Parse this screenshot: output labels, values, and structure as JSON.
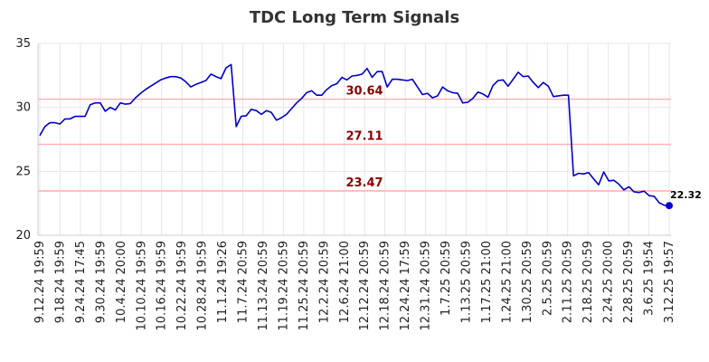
{
  "chart_data": {
    "type": "line",
    "title": "TDC Long Term Signals",
    "xlabel": "",
    "ylabel": "",
    "ylim": [
      20,
      35
    ],
    "yticks": [
      20,
      25,
      30,
      35
    ],
    "grid": true,
    "x_tick_labels": [
      "9.12.24 19:59",
      "9.18.24 19:59",
      "9.24.24 17:45",
      "9.30.24 19:59",
      "10.4.24 20:00",
      "10.10.24 19:59",
      "10.16.24 19:59",
      "10.22.24 19:59",
      "10.28.24 19:59",
      "11.1.24 19:26",
      "11.7.24 20:59",
      "11.13.24 20:59",
      "11.19.24 20:59",
      "11.25.24 20:59",
      "12.2.24 20:59",
      "12.6.24 21:00",
      "12.12.24 20:59",
      "12.18.24 20:59",
      "12.24.24 17:59",
      "12.31.24 20:59",
      "1.7.25 20:59",
      "1.13.25 20:59",
      "1.17.25 21:00",
      "1.24.25 21:00",
      "1.30.25 20:59",
      "2.5.25 20:59",
      "2.11.25 20:59",
      "2.18.25 20:59",
      "2.24.25 20:00",
      "2.28.25 20:59",
      "3.6.25 19:54",
      "3.12.25 19:57"
    ],
    "horizontal_levels": [
      {
        "value": 30.64,
        "label": "30.64"
      },
      {
        "value": 27.11,
        "label": "27.11"
      },
      {
        "value": 23.47,
        "label": "23.47"
      }
    ],
    "last_value_label": "22.32",
    "colors": {
      "series": "#0000cc",
      "levels": "#ffb3b3",
      "level_text": "#8b0000"
    },
    "series": [
      {
        "values": [
          27.8,
          28.5,
          28.8,
          28.8,
          28.7,
          29.1,
          29.1,
          29.3,
          29.3,
          29.3,
          30.2,
          30.35,
          30.35,
          29.7,
          30.0,
          29.8,
          30.35,
          30.25,
          30.3,
          30.75,
          31.1,
          31.4,
          31.65,
          31.9,
          32.15,
          32.3,
          32.4,
          32.4,
          32.3,
          32.0,
          31.6,
          31.8,
          31.95,
          32.1,
          32.6,
          32.4,
          32.25,
          33.1,
          33.35,
          28.5,
          29.3,
          29.35,
          29.85,
          29.75,
          29.45,
          29.75,
          29.6,
          29.0,
          29.2,
          29.45,
          29.9,
          30.35,
          30.7,
          31.15,
          31.3,
          30.95,
          30.95,
          31.4,
          31.7,
          31.85,
          32.35,
          32.15,
          32.45,
          32.5,
          32.6,
          33.05,
          32.35,
          32.8,
          32.8,
          31.6,
          32.2,
          32.2,
          32.15,
          32.1,
          32.2,
          31.6,
          31.0,
          31.1,
          30.75,
          30.9,
          31.6,
          31.3,
          31.15,
          31.1,
          30.35,
          30.4,
          30.7,
          31.2,
          31.05,
          30.8,
          31.7,
          32.1,
          32.15,
          31.65,
          32.2,
          32.75,
          32.4,
          32.45,
          31.95,
          31.55,
          31.95,
          31.65,
          30.85,
          30.9,
          30.95,
          30.95,
          24.65,
          24.85,
          24.8,
          24.9,
          24.4,
          23.95,
          24.95,
          24.25,
          24.3,
          24.0,
          23.55,
          23.8,
          23.4,
          23.35,
          23.45,
          23.1,
          23.05,
          22.55,
          22.35,
          22.32
        ]
      }
    ]
  }
}
